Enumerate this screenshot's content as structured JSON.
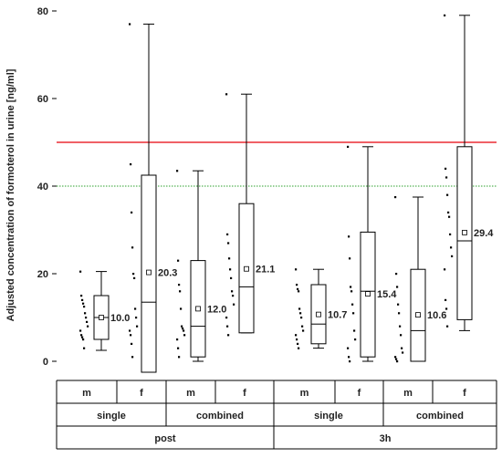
{
  "chart_data": {
    "type": "box",
    "ylabel": "Adjusted concentration of formoterol in urine [ng/ml]",
    "ylim": [
      -3,
      81
    ],
    "yticks": [
      0,
      20,
      40,
      60,
      80
    ],
    "reference_lines": [
      {
        "value": 50,
        "color": "#e8000b",
        "style": "solid"
      },
      {
        "value": 40,
        "color": "#2ca02c",
        "style": "dotted"
      }
    ],
    "groups": [
      {
        "time": "post",
        "regimen": "single",
        "sex": "m",
        "whisker_low": 2.5,
        "q1": 5,
        "median": 10,
        "q3": 15,
        "whisker_high": 20.5,
        "mean": 10.0,
        "mean_label": "10.0",
        "points": [
          20.5,
          15,
          14,
          13.2,
          12.5,
          11,
          10,
          9,
          8,
          7,
          6,
          5.5,
          5,
          3
        ]
      },
      {
        "time": "post",
        "regimen": "single",
        "sex": "f",
        "whisker_low": -2.5,
        "q1": -2.5,
        "median": 13.5,
        "q3": 42.5,
        "whisker_high": 77,
        "mean": 20.3,
        "mean_label": "20.3",
        "points": [
          77,
          45,
          34,
          26,
          20,
          19,
          12,
          10,
          8,
          7,
          6,
          4,
          1
        ]
      },
      {
        "time": "post",
        "regimen": "combined",
        "sex": "m",
        "whisker_low": 0,
        "q1": 1,
        "median": 8,
        "q3": 23,
        "whisker_high": 43.5,
        "mean": 12.0,
        "mean_label": "12.0",
        "points": [
          43.5,
          23,
          17.5,
          16,
          12,
          8,
          7.5,
          7,
          6,
          5,
          3,
          1
        ]
      },
      {
        "time": "post",
        "regimen": "combined",
        "sex": "f",
        "whisker_low": 6.5,
        "q1": 6.5,
        "median": 17,
        "q3": 36,
        "whisker_high": 61,
        "mean": 21.1,
        "mean_label": "21.1",
        "points": [
          61,
          29,
          27,
          23.5,
          21,
          19,
          16,
          15,
          13,
          10,
          8,
          6
        ]
      },
      {
        "time": "3h",
        "regimen": "single",
        "sex": "m",
        "whisker_low": 3,
        "q1": 4,
        "median": 8.5,
        "q3": 17.5,
        "whisker_high": 21,
        "mean": 10.7,
        "mean_label": "10.7",
        "points": [
          21,
          17.5,
          16.5,
          16,
          12,
          11,
          10,
          8,
          7,
          6,
          5,
          4,
          3
        ]
      },
      {
        "time": "3h",
        "regimen": "single",
        "sex": "f",
        "whisker_low": 0,
        "q1": 1,
        "median": 16,
        "q3": 29.5,
        "whisker_high": 49,
        "mean": 15.4,
        "mean_label": "15.4",
        "points": [
          49,
          28.5,
          23.5,
          17,
          16,
          13,
          11,
          7,
          5,
          3,
          1,
          0
        ]
      },
      {
        "time": "3h",
        "regimen": "combined",
        "sex": "m",
        "whisker_low": 0,
        "q1": 0,
        "median": 7,
        "q3": 21,
        "whisker_high": 37.5,
        "mean": 10.6,
        "mean_label": "10.6",
        "points": [
          37.5,
          20,
          17,
          13,
          11,
          8,
          6,
          3,
          2,
          1,
          0.5,
          0
        ]
      },
      {
        "time": "3h",
        "regimen": "combined",
        "sex": "f",
        "whisker_low": 7,
        "q1": 9.5,
        "median": 27.5,
        "q3": 49,
        "whisker_high": 79,
        "mean": 29.4,
        "mean_label": "29.4",
        "points": [
          79,
          44,
          42,
          38,
          34,
          33,
          29,
          26,
          24,
          21,
          14,
          12,
          8
        ]
      }
    ],
    "table": {
      "sex_labels": [
        "m",
        "f",
        "m",
        "f",
        "m",
        "f",
        "m",
        "f"
      ],
      "regimen_labels": [
        "single",
        "combined",
        "single",
        "combined"
      ],
      "time_labels": [
        "post",
        "3h"
      ]
    }
  }
}
